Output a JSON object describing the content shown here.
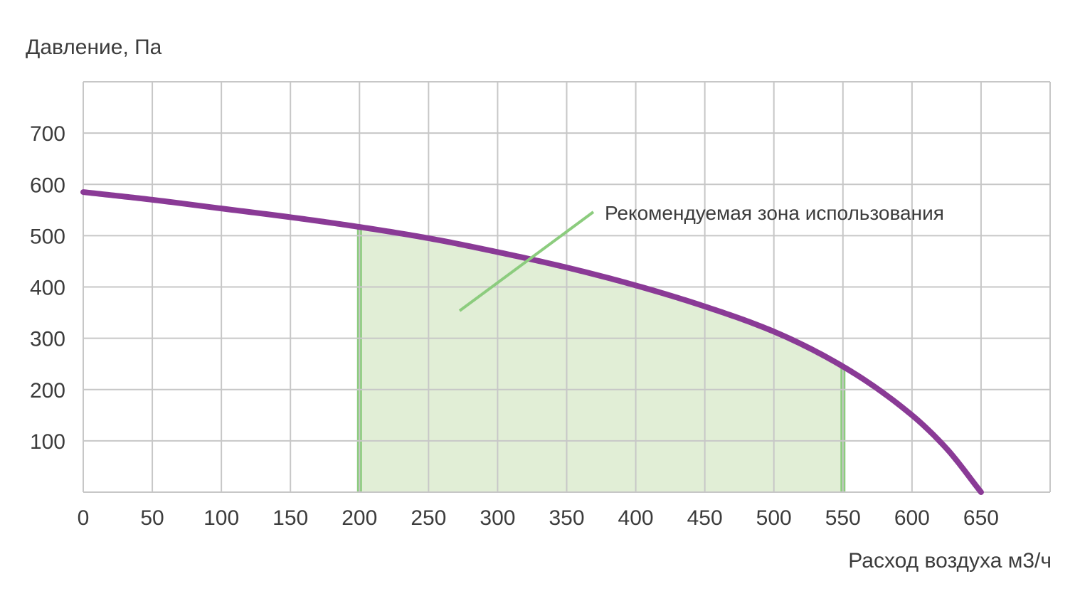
{
  "chart_data": {
    "type": "line",
    "ylabel": "Давление, Па",
    "xlabel": "Расход воздуха м3/ч",
    "x_ticks": [
      0,
      50,
      100,
      150,
      200,
      250,
      300,
      350,
      400,
      450,
      500,
      550,
      600,
      650
    ],
    "y_ticks": [
      100,
      200,
      300,
      400,
      500,
      600,
      700
    ],
    "xlim": [
      0,
      700
    ],
    "ylim": [
      0,
      800
    ],
    "grid": true,
    "series": [
      {
        "x": [
          0,
          50,
          100,
          150,
          200,
          250,
          300,
          350,
          400,
          450,
          500,
          550,
          600,
          625,
          650
        ],
        "y": [
          585,
          570,
          553,
          536,
          517,
          495,
          468,
          438,
          403,
          362,
          313,
          245,
          150,
          85,
          0
        ]
      }
    ],
    "recommended_zone": {
      "label": "Рекомендуемая зона использования",
      "x_from": 200,
      "x_to": 550
    },
    "colors": {
      "curve": "#8a3a96",
      "zone_fill": "#e1eed6",
      "zone_edge": "#8ccc7e",
      "grid": "#c7c7c7"
    }
  }
}
